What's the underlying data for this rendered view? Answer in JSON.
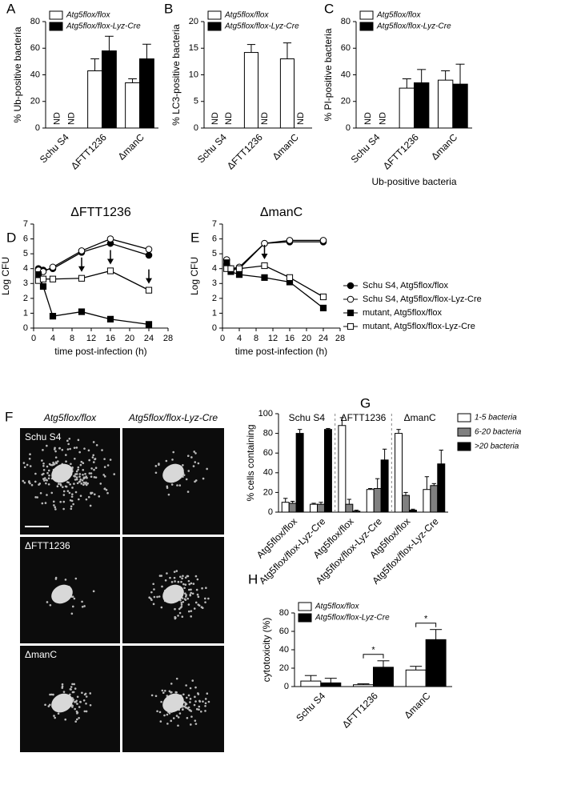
{
  "chart_data": [
    {
      "type": "bar",
      "panel": "A",
      "ylabel": "% Ub-positive bacteria",
      "categories": [
        "Schu S4",
        "ΔFTT1236",
        "ΔmanC"
      ],
      "series": [
        {
          "name": "Atg5flox/flox",
          "color": "#ffffff",
          "values": [
            null,
            43,
            34
          ],
          "errors": [
            null,
            9,
            3
          ]
        },
        {
          "name": "Atg5flox/flox-Lyz-Cre",
          "color": "#000000",
          "values": [
            null,
            58,
            52
          ],
          "errors": [
            null,
            11,
            11
          ]
        }
      ],
      "null_label": "ND",
      "ylim": [
        0,
        80
      ],
      "yticks": [
        0,
        20,
        40,
        60,
        80
      ],
      "legend": "top-left"
    },
    {
      "type": "bar",
      "panel": "B",
      "ylabel": "% LC3-positive bacteria",
      "categories": [
        "Schu S4",
        "ΔFTT1236",
        "ΔmanC"
      ],
      "series": [
        {
          "name": "Atg5flox/flox",
          "color": "#ffffff",
          "values": [
            null,
            14.2,
            13
          ],
          "errors": [
            null,
            1.5,
            3
          ]
        },
        {
          "name": "Atg5flox/flox-Lyz-Cre",
          "color": "#000000",
          "values": [
            null,
            null,
            null
          ],
          "errors": [
            null,
            null,
            null
          ]
        }
      ],
      "null_label": "ND",
      "ylim": [
        0,
        20
      ],
      "yticks": [
        0,
        5,
        10,
        15,
        20
      ],
      "legend": "top-left"
    },
    {
      "type": "bar",
      "panel": "C",
      "ylabel": "% PI-positive bacteria",
      "xlabel": "Ub-positive bacteria",
      "categories": [
        "Schu S4",
        "ΔFTT1236",
        "ΔmanC"
      ],
      "series": [
        {
          "name": "Atg5flox/flox",
          "color": "#ffffff",
          "values": [
            null,
            30,
            36
          ],
          "errors": [
            null,
            7,
            7
          ]
        },
        {
          "name": "Atg5flox/flox-Lyz-Cre",
          "color": "#000000",
          "values": [
            null,
            34,
            33
          ],
          "errors": [
            null,
            10,
            15
          ]
        }
      ],
      "null_label": "ND",
      "ylim": [
        0,
        80
      ],
      "yticks": [
        0,
        20,
        40,
        60,
        80
      ],
      "legend": "top-left"
    },
    {
      "type": "line",
      "panel": "D",
      "title": "ΔFTT1236",
      "xlabel": "time post-infection (h)",
      "ylabel": "Log CFU",
      "x": [
        1,
        2,
        4,
        10,
        16,
        24
      ],
      "series": [
        {
          "marker": "circle",
          "color": "#000000",
          "values": [
            4.0,
            3.9,
            4.0,
            5.1,
            5.7,
            4.9
          ]
        },
        {
          "marker": "circle",
          "color": "#ffffff",
          "values": [
            3.9,
            3.8,
            4.1,
            5.2,
            6.0,
            5.3
          ]
        },
        {
          "marker": "square",
          "color": "#000000",
          "values": [
            3.6,
            2.8,
            0.8,
            1.1,
            0.6,
            0.25
          ]
        },
        {
          "marker": "square",
          "color": "#ffffff",
          "values": [
            3.2,
            3.3,
            3.3,
            3.35,
            3.85,
            2.55
          ]
        }
      ],
      "arrow_x": [
        10,
        16,
        24
      ],
      "xlim": [
        0,
        28
      ],
      "xticks": [
        0,
        4,
        8,
        12,
        16,
        20,
        24,
        28
      ],
      "ylim": [
        0,
        7
      ],
      "yticks": [
        0,
        1,
        2,
        3,
        4,
        5,
        6,
        7
      ]
    },
    {
      "type": "line",
      "panel": "E",
      "title": "ΔmanC",
      "xlabel": "time post-infection (h)",
      "ylabel": "Log CFU",
      "x": [
        1,
        2,
        4,
        10,
        16,
        24
      ],
      "series": [
        {
          "name": "Schu S4, Atg5flox/flox",
          "marker": "circle",
          "color": "#000000",
          "values": [
            4.3,
            3.9,
            4.0,
            5.7,
            5.8,
            5.8
          ]
        },
        {
          "name": "Schu S4, Atg5flox/flox-Lyz-Cre",
          "marker": "circle",
          "color": "#ffffff",
          "values": [
            4.6,
            4.0,
            4.1,
            5.7,
            5.9,
            5.9
          ]
        },
        {
          "name": "mutant, Atg5flox/flox",
          "marker": "square",
          "color": "#000000",
          "values": [
            4.4,
            3.8,
            3.6,
            3.4,
            3.1,
            1.35
          ]
        },
        {
          "name": "mutant, Atg5flox/flox-Lyz-Cre",
          "marker": "square",
          "color": "#ffffff",
          "values": [
            4.0,
            4.0,
            4.0,
            4.2,
            3.4,
            2.1
          ]
        }
      ],
      "arrow_x": [
        10
      ],
      "xlim": [
        0,
        28
      ],
      "xticks": [
        0,
        4,
        8,
        12,
        16,
        20,
        24,
        28
      ],
      "ylim": [
        0,
        7
      ],
      "yticks": [
        0,
        1,
        2,
        3,
        4,
        5,
        6,
        7
      ],
      "legend": "right"
    },
    {
      "type": "bar",
      "panel": "G",
      "ylabel": "% cells containing",
      "groups": [
        "Schu S4",
        "ΔFTT1236",
        "ΔmanC"
      ],
      "categories": [
        "Atg5flox/flox",
        "Atg5flox/flox-Lyz-Cre",
        "Atg5flox/flox",
        "Atg5flox/flox-Lyz-Cre",
        "Atg5flox/flox",
        "Atg5flox/flox-Lyz-Cre"
      ],
      "series": [
        {
          "name": "1-5 bacteria",
          "color": "#ffffff",
          "values": [
            10,
            8,
            88,
            23,
            80,
            23
          ],
          "errors": [
            4,
            1,
            8,
            1,
            4,
            13
          ]
        },
        {
          "name": "6-20 bacteria",
          "color": "#808080",
          "values": [
            9,
            8,
            8,
            24,
            17,
            27
          ],
          "errors": [
            2,
            2,
            5,
            10,
            3,
            2
          ]
        },
        {
          "name": ">20 bacteria",
          "color": "#000000",
          "values": [
            80,
            84,
            1,
            53,
            2,
            49
          ],
          "errors": [
            4,
            1,
            1,
            11,
            1,
            14
          ]
        }
      ],
      "ylim": [
        0,
        100
      ],
      "yticks": [
        0,
        20,
        40,
        60,
        80,
        100
      ],
      "legend": "right"
    },
    {
      "type": "bar",
      "panel": "H",
      "ylabel": "cytotoxicity (%)",
      "categories": [
        "Schu S4",
        "ΔFTT1236",
        "ΔmanC"
      ],
      "series": [
        {
          "name": "Atg5flox/flox",
          "color": "#ffffff",
          "values": [
            6,
            2,
            18
          ],
          "errors": [
            6,
            1,
            4
          ]
        },
        {
          "name": "Atg5flox/flox-Lyz-Cre",
          "color": "#000000",
          "values": [
            4,
            21,
            51
          ],
          "errors": [
            5,
            7,
            11
          ]
        }
      ],
      "significance": [
        null,
        "*",
        "*"
      ],
      "ylim": [
        0,
        80
      ],
      "yticks": [
        0,
        20,
        40,
        60,
        80
      ],
      "legend": "top-left"
    }
  ],
  "image_panel": {
    "panel": "F",
    "columns": [
      "Atg5flox/flox",
      "Atg5flox/flox-Lyz-Cre"
    ],
    "rows": [
      "Schu S4",
      "ΔFTT1236",
      "ΔmanC"
    ]
  }
}
